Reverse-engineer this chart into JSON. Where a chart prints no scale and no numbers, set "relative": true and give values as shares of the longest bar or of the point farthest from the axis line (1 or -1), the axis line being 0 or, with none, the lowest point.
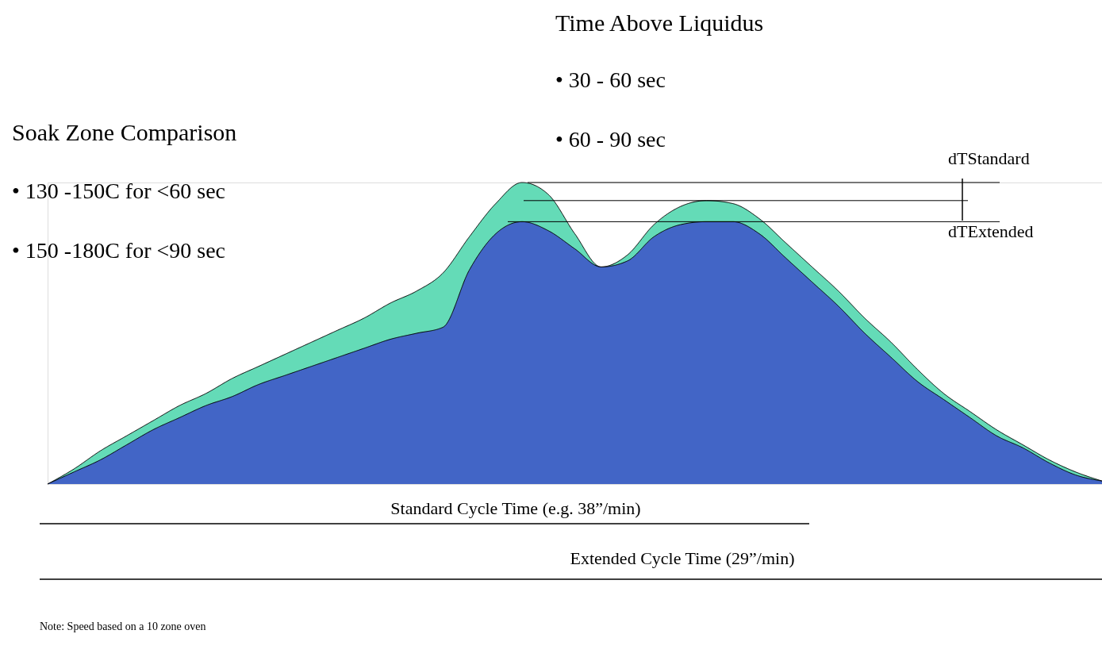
{
  "chart_data": {
    "type": "area",
    "relative": true,
    "categories": [
      null,
      null,
      null,
      null,
      null,
      null,
      null,
      null,
      null,
      null,
      null,
      null,
      null,
      null,
      null,
      null,
      null,
      null,
      null,
      null,
      null,
      null,
      null,
      null,
      null,
      null,
      null,
      null,
      null,
      null,
      null,
      null,
      null,
      null,
      null,
      null,
      null,
      null,
      null,
      null,
      null
    ],
    "series": [
      {
        "color": "#22cc99",
        "values": [
          0,
          0.05,
          0.11,
          0.16,
          0.21,
          0.26,
          0.3,
          0.35,
          0.39,
          0.43,
          0.47,
          0.51,
          0.55,
          0.6,
          0.64,
          0.7,
          0.82,
          0.93,
          1.0,
          0.96,
          0.83,
          0.72,
          0.76,
          0.86,
          0.92,
          0.94,
          0.93,
          0.88,
          0.8,
          0.72,
          0.64,
          0.55,
          0.47,
          0.38,
          0.3,
          0.24,
          0.18,
          0.13,
          0.08,
          0.04,
          0.01
        ]
      },
      {
        "color": "#3333cc",
        "values": [
          0,
          0.04,
          0.08,
          0.13,
          0.18,
          0.22,
          0.26,
          0.29,
          0.33,
          0.36,
          0.39,
          0.42,
          0.45,
          0.48,
          0.5,
          0.52,
          0.71,
          0.83,
          0.87,
          0.84,
          0.78,
          0.72,
          0.74,
          0.82,
          0.86,
          0.87,
          0.87,
          0.83,
          0.75,
          0.67,
          0.59,
          0.5,
          0.42,
          0.34,
          0.28,
          0.22,
          0.16,
          0.12,
          0.07,
          0.03,
          0.01
        ]
      }
    ],
    "ref_lines": [
      {
        "axis": "y",
        "value": 1.0,
        "color": "#000000"
      },
      {
        "axis": "y",
        "value": 0.94,
        "color": "#000000"
      },
      {
        "axis": "y",
        "value": 0.87,
        "color": "#000000"
      }
    ],
    "annotations": [
      "Time Above Liquidus",
      "• 30 - 60 sec",
      "• 60 - 90 sec",
      "Soak Zone Comparison",
      "• 130 -150C for <60 sec",
      "• 150 -180C for <90 sec",
      "dTStandard",
      "dTExtended",
      "Standard Cycle Time (e.g. 38”/min)",
      "Extended Cycle Time (29”/min)",
      "Note: Speed based on a 10 zone oven"
    ],
    "line_style": "solid"
  }
}
